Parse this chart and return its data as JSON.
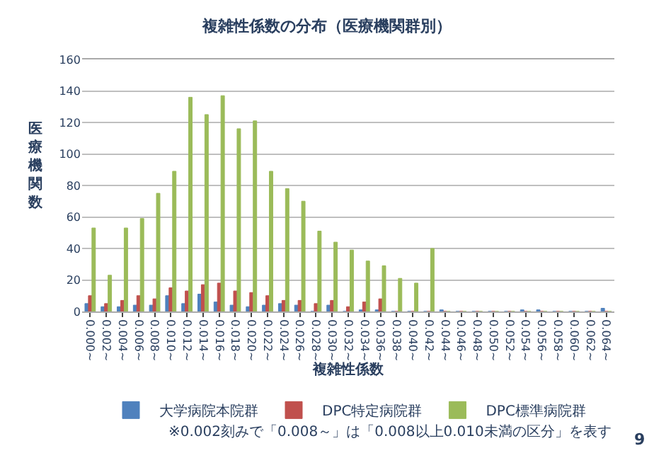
{
  "chart_data": {
    "type": "bar",
    "title": "複雑性係数の分布（医療機関群別）",
    "xlabel": "複雑性係数",
    "ylabel": "医療機関数",
    "categories": [
      "0.000~",
      "0.002~",
      "0.004~",
      "0.006~",
      "0.008~",
      "0.010~",
      "0.012~",
      "0.014~",
      "0.016~",
      "0.018~",
      "0.020~",
      "0.022~",
      "0.024~",
      "0.026~",
      "0.028~",
      "0.030~",
      "0.032~",
      "0.034~",
      "0.036~",
      "0.038~",
      "0.040~",
      "0.042~",
      "0.044~",
      "0.046~",
      "0.048~",
      "0.050~",
      "0.052~",
      "0.054~",
      "0.056~",
      "0.058~",
      "0.060~",
      "0.062~",
      "0.064~"
    ],
    "series": [
      {
        "name": "大学病院本院群",
        "color": "#4f81bd",
        "values": [
          5,
          3,
          3,
          4,
          4,
          10,
          5,
          11,
          6,
          4,
          3,
          4,
          5,
          4,
          0,
          4,
          0,
          1,
          1,
          0,
          0,
          0,
          1,
          0,
          0,
          0,
          0,
          1,
          1,
          0,
          0,
          0,
          2
        ]
      },
      {
        "name": "DPC特定病院群",
        "color": "#c0504d",
        "values": [
          10,
          5,
          7,
          10,
          8,
          15,
          13,
          17,
          18,
          13,
          12,
          10,
          7,
          7,
          5,
          7,
          3,
          6,
          8,
          0,
          0,
          0,
          0,
          0,
          0,
          0,
          0,
          0,
          0,
          0,
          0,
          0,
          0
        ]
      },
      {
        "name": "DPC標準病院群",
        "color": "#9bbb59",
        "values": [
          53,
          23,
          53,
          59,
          75,
          89,
          136,
          125,
          137,
          116,
          121,
          89,
          78,
          70,
          51,
          44,
          39,
          32,
          29,
          21,
          18,
          40,
          0,
          0,
          0,
          0,
          0,
          0,
          0,
          0,
          0,
          0,
          0
        ]
      }
    ],
    "ylim": [
      0,
      160
    ],
    "yticks": [
      0,
      20,
      40,
      60,
      80,
      100,
      120,
      140,
      160
    ],
    "grid": "y",
    "legend": "bottom",
    "annotations": [
      "※0.002刻みで「0.008～」は「0.008以上0.010未満の区分」を表す",
      "9"
    ]
  }
}
